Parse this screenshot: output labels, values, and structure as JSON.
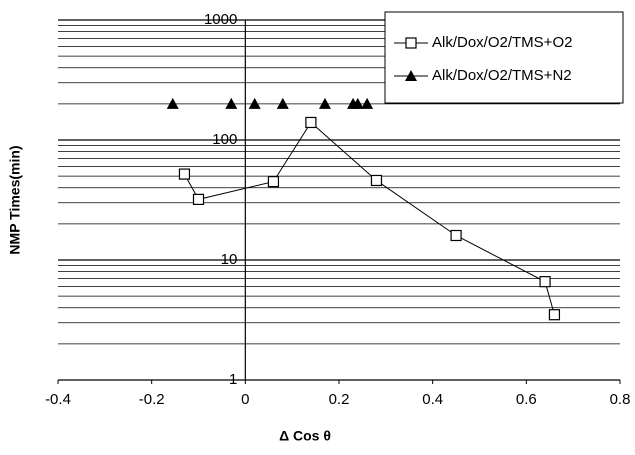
{
  "chart_data": {
    "type": "line",
    "log_y": true,
    "grid": true,
    "minor_grid": true,
    "legend": "top-right",
    "xlabel": "Δ Cos θ",
    "ylabel": "NMP Times(min)",
    "xlim": [
      -0.4,
      0.8
    ],
    "xticks": [
      -0.4,
      -0.2,
      0,
      0.2,
      0.4,
      0.6,
      0.8
    ],
    "ylim": [
      1,
      1000
    ],
    "yticks": [
      1,
      10,
      100,
      1000
    ],
    "series": [
      {
        "name": "Alk/Dox/O2/TMS+O2",
        "color": "#000000",
        "marker": "square",
        "line": true,
        "x": [
          -0.13,
          -0.1,
          0.06,
          0.14,
          0.28,
          0.45,
          0.64,
          0.66
        ],
        "values": [
          52,
          32,
          45,
          140,
          46,
          16,
          6.6,
          3.5
        ]
      },
      {
        "name": "Alk/Dox/O2/TMS+N2",
        "color": "#000000",
        "marker": "triangle",
        "line": false,
        "x": [
          -0.155,
          -0.03,
          0.02,
          0.08,
          0.17,
          0.23,
          0.24,
          0.26
        ],
        "values": [
          200,
          200,
          200,
          200,
          200,
          200,
          200,
          200
        ]
      }
    ]
  }
}
